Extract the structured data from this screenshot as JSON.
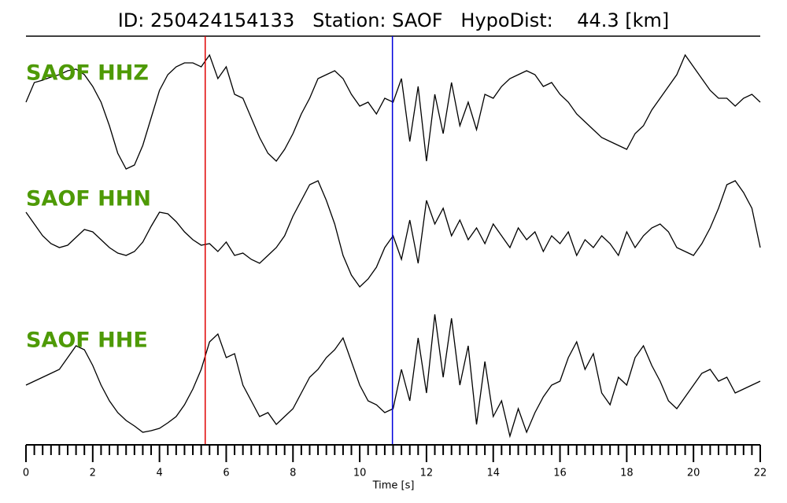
{
  "chart_data": {
    "type": "seismogram",
    "title": "ID: 250424154133   Station: SAOF   HypoDist:    44.3 [km]",
    "x_label": "Time [s]",
    "label_color": "#4e9a06",
    "xlim": [
      0,
      22
    ],
    "xticks": [
      0,
      2,
      4,
      6,
      8,
      10,
      12,
      14,
      16,
      18,
      20,
      22
    ],
    "ylim": [
      -100,
      100
    ],
    "markers": [
      {
        "x": 5.37,
        "color": "#e00000"
      },
      {
        "x": 10.98,
        "color": "#0000dd"
      }
    ],
    "x": [
      0,
      0.25,
      0.5,
      0.75,
      1,
      1.25,
      1.5,
      1.75,
      2,
      2.25,
      2.5,
      2.75,
      3,
      3.25,
      3.5,
      3.75,
      4,
      4.25,
      4.5,
      4.75,
      5,
      5.25,
      5.5,
      5.75,
      6,
      6.25,
      6.5,
      6.75,
      7,
      7.25,
      7.5,
      7.75,
      8,
      8.25,
      8.5,
      8.75,
      9,
      9.25,
      9.5,
      9.75,
      10,
      10.25,
      10.5,
      10.75,
      11,
      11.25,
      11.5,
      11.75,
      12,
      12.25,
      12.5,
      12.75,
      13,
      13.25,
      13.5,
      13.75,
      14,
      14.25,
      14.5,
      14.75,
      15,
      15.25,
      15.5,
      15.75,
      16,
      16.25,
      16.5,
      16.75,
      17,
      17.25,
      17.5,
      17.75,
      18,
      18.25,
      18.5,
      18.75,
      19,
      19.25,
      19.5,
      19.75,
      20,
      20.25,
      20.5,
      20.75,
      21,
      21.25,
      21.5,
      21.75,
      22
    ],
    "series": [
      {
        "name": "SAOF HHZ",
        "color": "#000000",
        "values": [
          10,
          35,
          38,
          42,
          45,
          50,
          52,
          45,
          30,
          10,
          -20,
          -55,
          -75,
          -70,
          -45,
          -10,
          25,
          45,
          55,
          60,
          60,
          55,
          70,
          40,
          55,
          20,
          15,
          -10,
          -35,
          -55,
          -65,
          -50,
          -30,
          -5,
          15,
          40,
          45,
          50,
          40,
          20,
          5,
          10,
          -5,
          15,
          10,
          40,
          -40,
          30,
          -65,
          20,
          -30,
          35,
          -20,
          10,
          -25,
          20,
          15,
          30,
          40,
          45,
          50,
          45,
          30,
          35,
          20,
          10,
          -5,
          -15,
          -25,
          -35,
          -40,
          -45,
          -50,
          -30,
          -20,
          0,
          15,
          30,
          45,
          70,
          55,
          40,
          25,
          15,
          15,
          5,
          15,
          20,
          10
        ]
      },
      {
        "name": "SAOF HHN",
        "color": "#000000",
        "values": [
          30,
          15,
          0,
          -10,
          -15,
          -12,
          -2,
          8,
          5,
          -5,
          -15,
          -22,
          -25,
          -20,
          -8,
          12,
          30,
          28,
          18,
          5,
          -5,
          -12,
          -10,
          -20,
          -8,
          -25,
          -22,
          -30,
          -35,
          -25,
          -15,
          0,
          25,
          45,
          65,
          70,
          45,
          15,
          -25,
          -50,
          -65,
          -55,
          -40,
          -15,
          0,
          -30,
          20,
          -35,
          45,
          15,
          35,
          0,
          20,
          -5,
          10,
          -10,
          15,
          0,
          -15,
          10,
          -5,
          5,
          -20,
          0,
          -10,
          5,
          -25,
          -5,
          -15,
          0,
          -10,
          -25,
          5,
          -15,
          0,
          10,
          15,
          5,
          -15,
          -20,
          -25,
          -10,
          10,
          35,
          65,
          70,
          55,
          35,
          -15
        ]
      },
      {
        "name": "SAOF HHE",
        "color": "#000000",
        "values": [
          -10,
          -5,
          0,
          5,
          10,
          25,
          40,
          35,
          15,
          -10,
          -30,
          -45,
          -55,
          -62,
          -70,
          -68,
          -65,
          -58,
          -50,
          -35,
          -15,
          10,
          45,
          55,
          25,
          30,
          -10,
          -30,
          -50,
          -45,
          -60,
          -50,
          -40,
          -20,
          0,
          10,
          25,
          35,
          50,
          20,
          -10,
          -30,
          -35,
          -45,
          -40,
          10,
          -30,
          50,
          -20,
          80,
          0,
          75,
          -10,
          40,
          -60,
          20,
          -50,
          -30,
          -75,
          -40,
          -70,
          -45,
          -25,
          -10,
          -5,
          25,
          45,
          10,
          30,
          -20,
          -35,
          0,
          -10,
          25,
          40,
          15,
          -5,
          -30,
          -40,
          -25,
          -10,
          5,
          10,
          -5,
          0,
          -20,
          -15,
          -10,
          -5
        ]
      }
    ]
  }
}
